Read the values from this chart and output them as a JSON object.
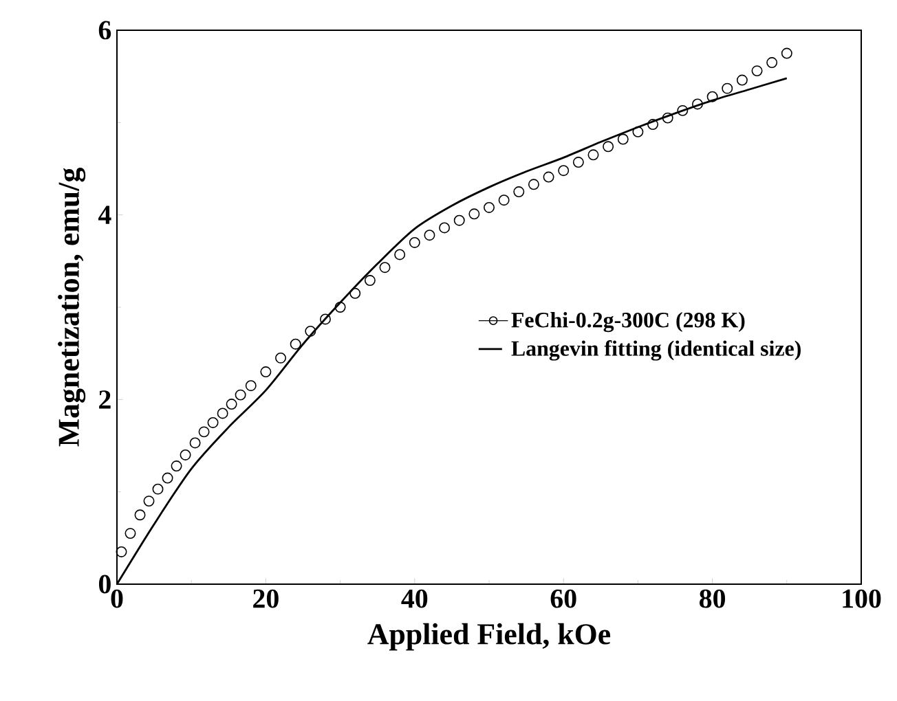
{
  "chart_data": {
    "type": "scatter",
    "xlabel": "Applied Field, kOe",
    "ylabel": "Magnetization, emu/g",
    "xlim": [
      0,
      100
    ],
    "ylim": [
      0,
      6
    ],
    "xticks": [
      0,
      20,
      40,
      60,
      80,
      100
    ],
    "yticks": [
      0,
      2,
      4,
      6
    ],
    "legend": "right",
    "grid": false,
    "series": [
      {
        "name": "FeChi-0.2g-300C (298 K)",
        "color": "#000000",
        "marker": "circle",
        "x": [
          0.6,
          1.8,
          3.1,
          4.3,
          5.5,
          6.8,
          8,
          9.2,
          10.5,
          11.7,
          12.9,
          14.2,
          15.4,
          16.6,
          18,
          20,
          22,
          24,
          26,
          28,
          30,
          32,
          34,
          36,
          38,
          40,
          42,
          44,
          46,
          48,
          50,
          52,
          54,
          56,
          58,
          60,
          62,
          64,
          66,
          68,
          70,
          72,
          74,
          76,
          78,
          80,
          82,
          84,
          86,
          88,
          90
        ],
        "values": [
          0.35,
          0.55,
          0.75,
          0.9,
          1.03,
          1.15,
          1.28,
          1.4,
          1.53,
          1.65,
          1.75,
          1.85,
          1.95,
          2.05,
          2.15,
          2.3,
          2.45,
          2.6,
          2.74,
          2.87,
          3.0,
          3.15,
          3.29,
          3.43,
          3.57,
          3.7,
          3.78,
          3.86,
          3.94,
          4.01,
          4.08,
          4.16,
          4.25,
          4.33,
          4.41,
          4.48,
          4.57,
          4.65,
          4.74,
          4.82,
          4.9,
          4.98,
          5.05,
          5.13,
          5.2,
          5.28,
          5.37,
          5.46,
          5.56,
          5.65,
          5.75
        ]
      },
      {
        "name": "Langevin fitting (identical size)",
        "color": "#000000",
        "type": "line",
        "marker": "none",
        "line_style": "solid",
        "x": [
          0,
          5,
          10,
          15,
          20,
          25,
          30,
          35,
          40,
          45,
          50,
          55,
          60,
          65,
          70,
          75,
          80,
          85,
          90
        ],
        "values": [
          0,
          0.65,
          1.25,
          1.7,
          2.1,
          2.6,
          3.05,
          3.47,
          3.85,
          4.1,
          4.3,
          4.47,
          4.62,
          4.79,
          4.95,
          5.1,
          5.24,
          5.36,
          5.48
        ]
      }
    ]
  }
}
